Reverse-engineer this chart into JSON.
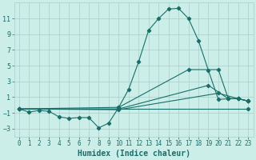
{
  "xlabel": "Humidex (Indice chaleur)",
  "bg_color": "#cceee8",
  "grid_color": "#aacccc",
  "line_color": "#1a6e6a",
  "xlim": [
    -0.5,
    23.5
  ],
  "ylim": [
    -4.0,
    13.0
  ],
  "xticks": [
    0,
    1,
    2,
    3,
    4,
    5,
    6,
    7,
    8,
    9,
    10,
    11,
    12,
    13,
    14,
    15,
    16,
    17,
    18,
    19,
    20,
    21,
    22,
    23
  ],
  "yticks": [
    -3,
    -1,
    1,
    3,
    5,
    7,
    9,
    11
  ],
  "line1_x": [
    0,
    1,
    2,
    3,
    4,
    5,
    6,
    7,
    8,
    9,
    10,
    11,
    12,
    13,
    14,
    15,
    16,
    17,
    18,
    19,
    20,
    21,
    22,
    23
  ],
  "line1_y": [
    -0.5,
    -0.9,
    -0.7,
    -0.8,
    -1.5,
    -1.7,
    -1.6,
    -1.6,
    -2.9,
    -2.3,
    -0.3,
    2.0,
    5.5,
    9.5,
    11.0,
    12.2,
    12.3,
    11.0,
    8.2,
    4.4,
    0.7,
    0.8,
    0.8,
    0.5
  ],
  "line2_x": [
    0,
    10,
    17,
    20,
    21,
    22,
    23
  ],
  "line2_y": [
    -0.5,
    -0.3,
    4.5,
    4.5,
    0.8,
    0.8,
    0.5
  ],
  "line3_x": [
    0,
    10,
    19,
    21,
    22,
    23
  ],
  "line3_y": [
    -0.5,
    -0.5,
    2.5,
    0.8,
    0.8,
    0.5
  ],
  "line4_x": [
    0,
    23
  ],
  "line4_y": [
    -0.5,
    -0.5
  ],
  "line5_x": [
    0,
    10,
    20,
    22,
    23
  ],
  "line5_y": [
    -0.5,
    -0.6,
    1.5,
    0.8,
    0.5
  ]
}
